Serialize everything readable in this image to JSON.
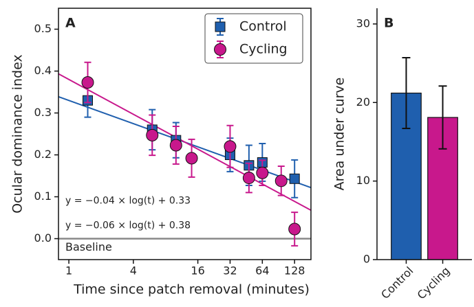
{
  "chart_data": [
    {
      "type": "scatter",
      "panel_label": "A",
      "x_label": "Time since patch removal (minutes)",
      "y_label": "Ocular dominance index",
      "xscale": "log",
      "xlim": [
        0.8,
        182
      ],
      "ylim": [
        -0.05,
        0.55
      ],
      "xticks": [
        1,
        4,
        16,
        32,
        64,
        128
      ],
      "yticks": [
        {
          "value": 0,
          "label": "0.0"
        },
        0.1,
        0.2,
        0.3,
        0.4,
        0.5
      ],
      "legend": "upper right",
      "baseline": {
        "value": 0,
        "label": "Baseline",
        "color": "#888888"
      },
      "series": [
        {
          "name": "Control",
          "color": "#1f5fae",
          "marker": "square",
          "x": [
            1.5,
            6,
            10,
            32,
            48,
            64,
            128
          ],
          "values": [
            0.33,
            0.26,
            0.235,
            0.2,
            0.175,
            0.182,
            0.143
          ],
          "errors": [
            0.04,
            0.048,
            0.042,
            0.04,
            0.048,
            0.045,
            0.045
          ],
          "fit": {
            "slope": -0.04,
            "intercept": 0.33,
            "label": "y = −0.04 × log(t) + 0.33"
          }
        },
        {
          "name": "Cycling",
          "color": "#c8188c",
          "marker": "circle",
          "x": [
            1.5,
            6,
            10,
            14,
            32,
            48,
            64,
            96,
            128
          ],
          "values": [
            0.373,
            0.247,
            0.223,
            0.192,
            0.22,
            0.145,
            0.157,
            0.138,
            0.023
          ],
          "errors": [
            0.048,
            0.048,
            0.045,
            0.045,
            0.05,
            0.035,
            0.03,
            0.035,
            0.04
          ],
          "fit": {
            "slope": -0.06,
            "intercept": 0.38,
            "label": "y = −0.06 × log(t) + 0.38"
          }
        }
      ]
    },
    {
      "type": "bar",
      "panel_label": "B",
      "y_label": "Area under curve",
      "categories": [
        "Control",
        "Cycling"
      ],
      "values": [
        21.2,
        18.1
      ],
      "errors": [
        4.5,
        4.0
      ],
      "colors": [
        "#1f5fae",
        "#c8188c"
      ],
      "ylim": [
        0,
        32
      ],
      "yticks": [
        0,
        10,
        20,
        30
      ]
    }
  ]
}
